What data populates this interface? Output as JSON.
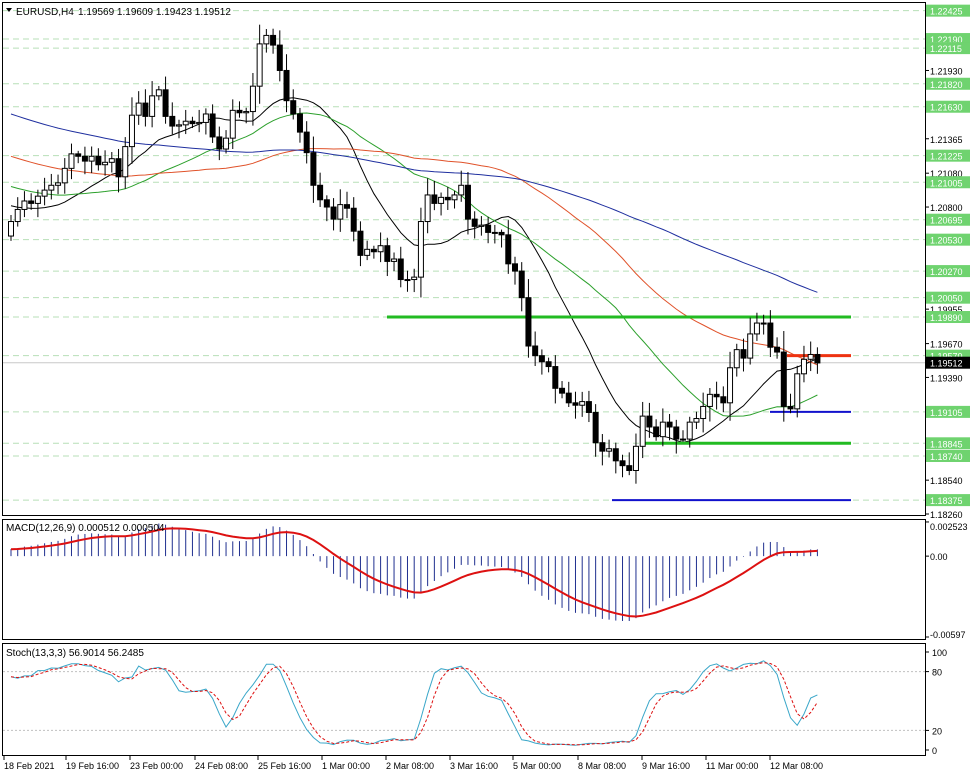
{
  "header": {
    "symbol": "EURUSD,H4",
    "ohlc": "1.19569 1.19609 1.19423 1.19512"
  },
  "colors": {
    "background": "#ffffff",
    "bull_candle": "#ffffff",
    "bear_candle": "#000000",
    "ma_fast": "#000000",
    "ma_mid": "#2ca02c",
    "ma_slow_red": "#e0522a",
    "ma_slow_blue": "#1f2f9f",
    "level_green": "#22bb22",
    "level_red": "#ee3311",
    "level_blue": "#1111cc",
    "macd_histogram": "#1f2f8f",
    "macd_signal": "#dd1111",
    "stoch_main": "#3aa7c9",
    "stoch_signal": "#dd1111",
    "grid": "#b7dfb7"
  },
  "chart_data": [
    {
      "type": "candlestick",
      "title": "EURUSD,H4",
      "ylim": [
        1.1826,
        1.2248
      ],
      "y_ticks": [
        "1.22425",
        "1.22190",
        "1.22115",
        "1.21930",
        "1.21820",
        "1.21630",
        "1.21365",
        "1.21225",
        "1.21080",
        "1.21005",
        "1.20800",
        "1.20695",
        "1.20530",
        "1.20270",
        "1.20050",
        "1.19955",
        "1.19890",
        "1.19670",
        "1.19570",
        "1.19512",
        "1.19390",
        "1.19105",
        "1.18845",
        "1.18740",
        "1.18540",
        "1.18375",
        "1.18260"
      ],
      "highlighted_y_ticks": [
        "1.22425",
        "1.22190",
        "1.22115",
        "1.21820",
        "1.21630",
        "1.21225",
        "1.21005",
        "1.20695",
        "1.20530",
        "1.20270",
        "1.20050",
        "1.19890",
        "1.19570",
        "1.19105",
        "1.18845",
        "1.18740",
        "1.18375"
      ],
      "current_price": "1.19512",
      "x_ticks": [
        "18 Feb 2021",
        "19 Feb 16:00",
        "23 Feb 00:00",
        "24 Feb 08:00",
        "25 Feb 16:00",
        "1 Mar 00:00",
        "2 Mar 08:00",
        "3 Mar 16:00",
        "5 Mar 00:00",
        "8 Mar 08:00",
        "9 Mar 16:00",
        "11 Mar 00:00",
        "12 Mar 08:00"
      ],
      "close": [
        1.2068,
        1.2078,
        1.2085,
        1.2083,
        1.2089,
        1.2094,
        1.2098,
        1.21,
        1.2112,
        1.2124,
        1.2122,
        1.2118,
        1.2122,
        1.2115,
        1.2117,
        1.212,
        1.2105,
        1.213,
        1.2156,
        1.2166,
        1.2155,
        1.2172,
        1.2177,
        1.2155,
        1.2147,
        1.2148,
        1.2151,
        1.2149,
        1.215,
        1.2157,
        1.2138,
        1.2128,
        1.2137,
        1.216,
        1.2158,
        1.2159,
        1.218,
        1.2215,
        1.2222,
        1.2214,
        1.2193,
        1.2168,
        1.2157,
        1.2142,
        1.2125,
        1.2098,
        1.2086,
        1.208,
        1.207,
        1.2082,
        1.2079,
        1.206,
        1.204,
        1.2045,
        1.2043,
        1.2048,
        1.2035,
        1.2037,
        1.202,
        1.202,
        1.2022,
        1.2068,
        1.209,
        1.2083,
        1.2088,
        1.2086,
        1.209,
        1.2098,
        1.207,
        1.2064,
        1.2065,
        1.2059,
        1.2059,
        1.2057,
        1.2033,
        1.2027,
        1.2005,
        1.1965,
        1.1957,
        1.1952,
        1.1948,
        1.193,
        1.1926,
        1.1918,
        1.1916,
        1.1919,
        1.191,
        1.1885,
        1.1878,
        1.188,
        1.187,
        1.1866,
        1.1862,
        1.1882,
        1.1907,
        1.1898,
        1.189,
        1.1902,
        1.1898,
        1.1888,
        1.1888,
        1.1902,
        1.1905,
        1.1915,
        1.1925,
        1.1923,
        1.1918,
        1.1947,
        1.1962,
        1.1955,
        1.1975,
        1.1984,
        1.1984,
        1.1964,
        1.196,
        1.1915,
        1.1913,
        1.1942,
        1.1954,
        1.1958,
        1.1951
      ]
    },
    {
      "type": "line",
      "title": "MACD(12,26,9) 0.000512 0.000504",
      "ylim": [
        -0.00597,
        0.00252
      ],
      "y_ticks": [
        "0.002523",
        "0.00",
        "-0.00597"
      ]
    },
    {
      "type": "line",
      "title": "Stoch(13,3,3) 56.9014 56.2485",
      "ylim": [
        0,
        100
      ],
      "y_ticks": [
        "100",
        "80",
        "20",
        "0"
      ]
    }
  ]
}
